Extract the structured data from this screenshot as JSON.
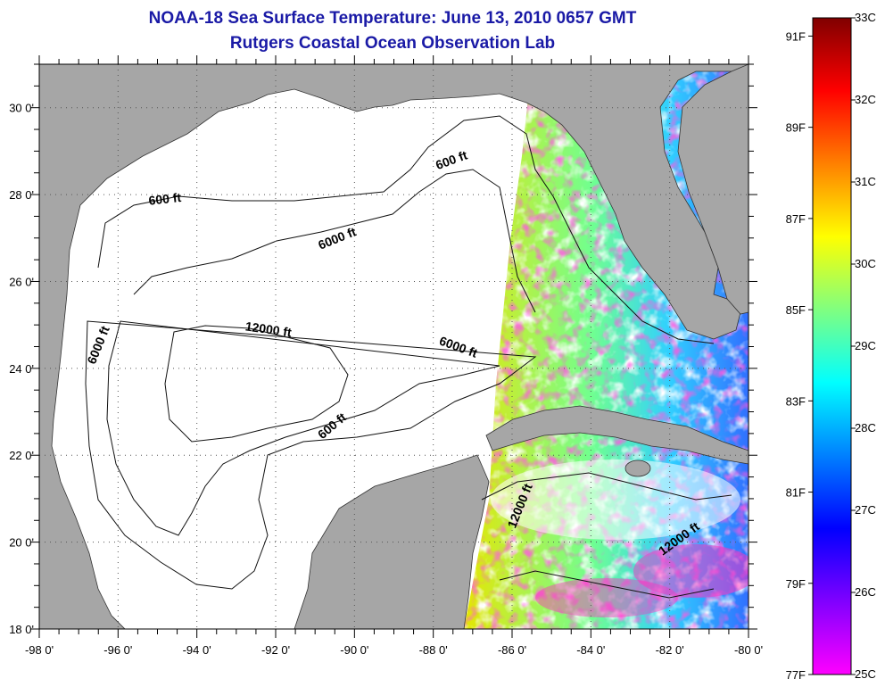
{
  "header": {
    "title": "NOAA-18 Sea Surface Temperature:  June 13, 2010 0657 GMT",
    "subtitle": "Rutgers Coastal Ocean Observation Lab"
  },
  "map": {
    "lon_range": [
      -98,
      -80
    ],
    "lat_range": [
      18,
      31
    ],
    "lon_ticks": [
      {
        "value": -98,
        "label": "-98 0'"
      },
      {
        "value": -96,
        "label": "-96 0'"
      },
      {
        "value": -94,
        "label": "-94 0'"
      },
      {
        "value": -92,
        "label": "-92 0'"
      },
      {
        "value": -90,
        "label": "-90 0'"
      },
      {
        "value": -88,
        "label": "-88 0'"
      },
      {
        "value": -86,
        "label": "-86 0'"
      },
      {
        "value": -84,
        "label": "-84 0'"
      },
      {
        "value": -82,
        "label": "-82 0'"
      },
      {
        "value": -80,
        "label": "-80 0'"
      }
    ],
    "lat_ticks": [
      {
        "value": 30,
        "label": "30 0'"
      },
      {
        "value": 28,
        "label": "28 0'"
      },
      {
        "value": 26,
        "label": "26 0'"
      },
      {
        "value": 24,
        "label": "24 0'"
      },
      {
        "value": 22,
        "label": "22 0'"
      },
      {
        "value": 20,
        "label": "20 0'"
      },
      {
        "value": 18,
        "label": "18 0'"
      }
    ],
    "grid": "dotted",
    "land_color": "#a6a6a6",
    "no_data_color": "#ffffff",
    "contour_labels": [
      {
        "text": "600 ft",
        "lon": -94.8,
        "lat": 27.8,
        "angle": -6
      },
      {
        "text": "600 ft",
        "lon": -87.5,
        "lat": 28.7,
        "angle": -20
      },
      {
        "text": "6000 ft",
        "lon": -90.4,
        "lat": 26.9,
        "angle": -22
      },
      {
        "text": "12000 ft",
        "lon": -92.2,
        "lat": 24.8,
        "angle": 8
      },
      {
        "text": "6000 ft",
        "lon": -87.4,
        "lat": 24.4,
        "angle": 20
      },
      {
        "text": "6000 ft",
        "lon": -96.4,
        "lat": 24.5,
        "angle": -68
      },
      {
        "text": "600 ft",
        "lon": -90.5,
        "lat": 22.6,
        "angle": -40
      },
      {
        "text": "12000 ft",
        "lon": -85.7,
        "lat": 20.8,
        "angle": -68
      },
      {
        "text": "12000 ft",
        "lon": -81.7,
        "lat": 20.0,
        "angle": -36
      }
    ]
  },
  "colorbar": {
    "celsius": [
      {
        "value": 33,
        "label": "33C"
      },
      {
        "value": 32,
        "label": "32C"
      },
      {
        "value": 31,
        "label": "31C"
      },
      {
        "value": 30,
        "label": "30C"
      },
      {
        "value": 29,
        "label": "29C"
      },
      {
        "value": 28,
        "label": "28C"
      },
      {
        "value": 27,
        "label": "27C"
      },
      {
        "value": 26,
        "label": "26C"
      },
      {
        "value": 25,
        "label": "25C"
      }
    ],
    "fahrenheit": [
      {
        "value": 91,
        "label": "91F"
      },
      {
        "value": 89,
        "label": "89F"
      },
      {
        "value": 87,
        "label": "87F"
      },
      {
        "value": 85,
        "label": "85F"
      },
      {
        "value": 83,
        "label": "83F"
      },
      {
        "value": 81,
        "label": "81F"
      },
      {
        "value": 79,
        "label": "79F"
      },
      {
        "value": 77,
        "label": "77F"
      }
    ],
    "colors_top_to_bottom": [
      "#800000",
      "#ff0000",
      "#ff8000",
      "#ffff00",
      "#80ff80",
      "#00ffff",
      "#0080ff",
      "#0000ff",
      "#8000ff",
      "#ff00ff"
    ]
  }
}
